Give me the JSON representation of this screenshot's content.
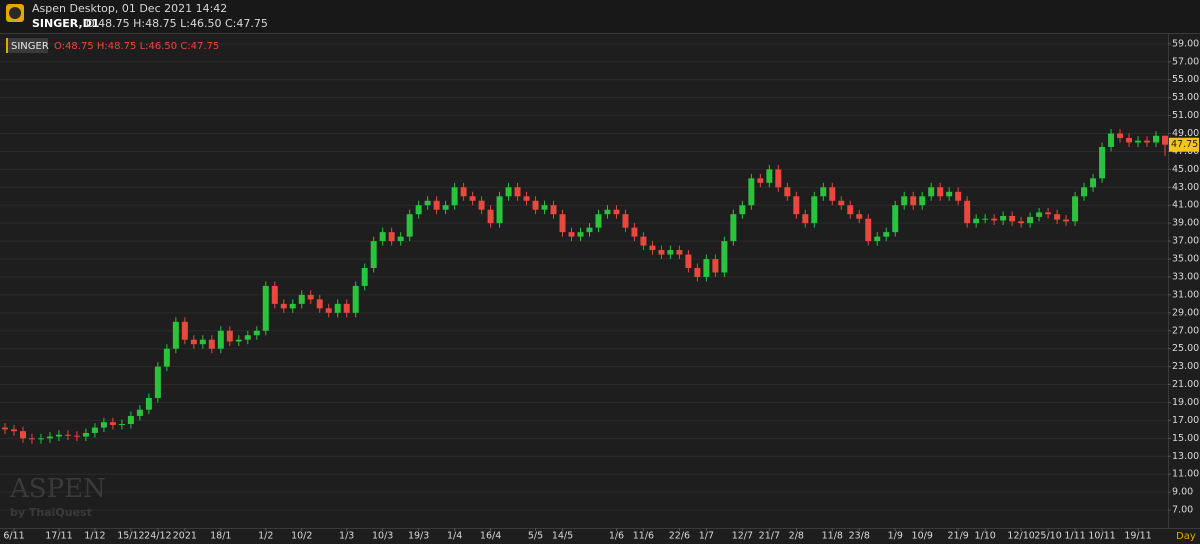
{
  "header": {
    "app_title": "Aspen Desktop, 01 Dec 2021 14:42",
    "symbol": "SINGER,D1",
    "ohlc": "O:48.75 H:48.75 L:46.50 C:47.75"
  },
  "watermark": {
    "brand": "ASPEN",
    "byline": "by ThaiQuest"
  },
  "chart_data": {
    "type": "candlestick",
    "title": "SINGER",
    "period": "Day",
    "up_color": "#2bc23e",
    "down_color": "#e8483e",
    "grid": true,
    "ylim": [
      5,
      60.1
    ],
    "yticks": [
      {
        "value": 7,
        "label": "7.00"
      },
      {
        "value": 9,
        "label": "9.00"
      },
      {
        "value": 11,
        "label": "11.00"
      },
      {
        "value": 13,
        "label": "13.00"
      },
      {
        "value": 15,
        "label": "15.00"
      },
      {
        "value": 17,
        "label": "17.00"
      },
      {
        "value": 19,
        "label": "19.00"
      },
      {
        "value": 21,
        "label": "21.00"
      },
      {
        "value": 23,
        "label": "23.00"
      },
      {
        "value": 25,
        "label": "25.00"
      },
      {
        "value": 27,
        "label": "27.00"
      },
      {
        "value": 29,
        "label": "29.00"
      },
      {
        "value": 31,
        "label": "31.00"
      },
      {
        "value": 33,
        "label": "33.00"
      },
      {
        "value": 35,
        "label": "35.00"
      },
      {
        "value": 37,
        "label": "37.00"
      },
      {
        "value": 39,
        "label": "39.00"
      },
      {
        "value": 41,
        "label": "41.00"
      },
      {
        "value": 43,
        "label": "43.00"
      },
      {
        "value": 45,
        "label": "45.00"
      },
      {
        "value": 47,
        "label": "47.00"
      },
      {
        "value": 49,
        "label": "49.00"
      },
      {
        "value": 51,
        "label": "51.00"
      },
      {
        "value": 53,
        "label": "53.00"
      },
      {
        "value": 55,
        "label": "55.00"
      },
      {
        "value": 57,
        "label": "57.00"
      },
      {
        "value": 59,
        "label": "59.00"
      }
    ],
    "current_price": {
      "value": 47.75,
      "label": "47.75"
    },
    "categories": [
      null,
      "6/11",
      null,
      null,
      null,
      null,
      "17/11",
      null,
      null,
      null,
      "1/12",
      null,
      null,
      null,
      "15/12",
      null,
      null,
      "24/12",
      null,
      null,
      "2021",
      null,
      null,
      null,
      "18/1",
      null,
      null,
      null,
      null,
      "1/2",
      null,
      null,
      null,
      "10/2",
      null,
      null,
      null,
      null,
      "1/3",
      null,
      null,
      null,
      "10/3",
      null,
      null,
      null,
      "19/3",
      null,
      null,
      null,
      "1/4",
      null,
      null,
      null,
      "16/4",
      null,
      null,
      null,
      null,
      "5/5",
      null,
      null,
      "14/5",
      null,
      null,
      null,
      null,
      null,
      "1/6",
      null,
      null,
      "11/6",
      null,
      null,
      null,
      "22/6",
      null,
      null,
      "1/7",
      null,
      null,
      null,
      "12/7",
      null,
      null,
      "21/7",
      null,
      null,
      "2/8",
      null,
      null,
      null,
      "11/8",
      null,
      null,
      "23/8",
      null,
      null,
      null,
      "1/9",
      null,
      null,
      "10/9",
      null,
      null,
      null,
      "21/9",
      null,
      null,
      "1/10",
      null,
      null,
      null,
      "12/10",
      null,
      null,
      "25/10",
      null,
      null,
      "1/11",
      null,
      null,
      "10/11",
      null,
      null,
      null,
      "19/11",
      null,
      null,
      null
    ],
    "open": [
      16.2,
      16,
      15.8,
      15,
      14.9,
      15,
      15.2,
      15.4,
      15.3,
      15.2,
      15.6,
      16.2,
      16.8,
      16.5,
      16.6,
      17.5,
      18.2,
      19.5,
      23,
      25,
      28,
      26,
      25.5,
      26,
      25,
      27,
      25.8,
      26,
      26.5,
      27,
      32,
      30,
      29.5,
      30,
      31,
      30.5,
      29.5,
      29,
      30,
      29,
      32,
      34,
      37,
      38,
      37,
      37.5,
      40,
      41,
      41.5,
      40.5,
      41,
      43,
      42,
      41.5,
      40.5,
      39,
      42,
      43,
      42,
      41.5,
      40.5,
      41,
      40,
      38,
      37.5,
      38,
      38.5,
      40,
      40.5,
      40,
      38.5,
      37.5,
      36.5,
      36,
      35.5,
      36,
      35.5,
      34,
      33,
      35,
      33.5,
      37,
      40,
      41,
      44,
      43.5,
      45,
      43,
      42,
      40,
      39,
      42,
      43,
      41.5,
      41,
      40,
      39.5,
      37,
      37.5,
      38,
      41,
      42,
      41,
      42,
      43,
      42,
      42.5,
      41.5,
      39,
      39.5,
      39.5,
      39.3,
      39.8,
      39.2,
      39,
      39.7,
      40.2,
      40,
      39.4,
      39.2,
      42,
      43,
      44,
      47.5,
      49,
      48.5,
      48,
      48.2,
      48,
      48.75
    ],
    "high": [
      16.7,
      16.5,
      16.3,
      15.5,
      15.5,
      15.7,
      15.9,
      15.9,
      15.8,
      16.1,
      16.7,
      17.3,
      17.3,
      17.1,
      18,
      18.7,
      20,
      23.5,
      25.5,
      28.5,
      28.5,
      26.5,
      26.5,
      26.5,
      27.5,
      27.5,
      26.5,
      27,
      27.5,
      32.5,
      32.5,
      30.5,
      30.5,
      31.5,
      31.5,
      31,
      30,
      30.5,
      30.5,
      32.5,
      34.5,
      37.5,
      38.5,
      38.5,
      38,
      40.5,
      41.5,
      42,
      42,
      41.5,
      43.5,
      43.5,
      42.5,
      42,
      41,
      42.5,
      43.5,
      43.5,
      42.5,
      42,
      41.5,
      41.5,
      40.5,
      38.5,
      38.5,
      39,
      40.5,
      41,
      41,
      40.5,
      39,
      38,
      37,
      36.5,
      36.5,
      36.5,
      36,
      34.5,
      35.5,
      35.5,
      37.5,
      40.5,
      41.5,
      44.5,
      44.5,
      45.5,
      45.5,
      43.5,
      42.5,
      40.5,
      42.5,
      43.5,
      43.5,
      42,
      41.5,
      40.5,
      40,
      38,
      38.5,
      41.5,
      42.5,
      42.5,
      42.5,
      43.5,
      43.5,
      43,
      43,
      42,
      40,
      40,
      40,
      40.3,
      40.3,
      39.7,
      40.2,
      40.7,
      40.7,
      40.5,
      39.9,
      42.5,
      43.5,
      44.5,
      48,
      49.5,
      49.5,
      49,
      48.7,
      48.7,
      49.25,
      48.75
    ],
    "low": [
      15.5,
      15.3,
      14.5,
      14.4,
      14.4,
      14.5,
      14.7,
      14.8,
      14.7,
      14.7,
      15.1,
      15.7,
      16,
      16,
      16.1,
      17,
      17.7,
      19,
      22.5,
      24.5,
      25.5,
      25,
      25,
      24.5,
      24.5,
      25.3,
      25.3,
      25.5,
      26,
      26.5,
      29.5,
      29,
      29,
      29.5,
      30,
      29,
      28.5,
      28.5,
      28.5,
      28.5,
      31.5,
      33.5,
      36.5,
      36.5,
      36.5,
      37,
      39.5,
      40.5,
      40,
      40,
      40.5,
      41.5,
      41,
      40,
      38.5,
      38.5,
      41.5,
      41.5,
      41,
      40,
      40,
      39.5,
      37.5,
      37,
      37,
      37.5,
      38,
      39.5,
      39.5,
      38,
      37,
      36,
      35.5,
      35,
      35,
      35,
      33.5,
      32.5,
      32.5,
      33,
      33,
      36.5,
      39.5,
      40.5,
      43,
      43,
      42.5,
      41.5,
      39.5,
      38.5,
      38.5,
      41.5,
      41,
      40.5,
      39.5,
      39,
      36.5,
      36.5,
      37,
      37.5,
      40.5,
      40.5,
      40.5,
      41.5,
      41.5,
      41.5,
      41,
      38.5,
      38.5,
      39,
      38.8,
      38.8,
      38.7,
      38.5,
      38.5,
      39.2,
      39.5,
      38.9,
      38.7,
      38.7,
      41.5,
      42.5,
      43.5,
      47,
      48,
      47.5,
      47.5,
      47.5,
      47.5,
      46.5
    ],
    "close": [
      16,
      15.8,
      15,
      14.9,
      15,
      15.2,
      15.4,
      15.3,
      15.2,
      15.6,
      16.2,
      16.8,
      16.5,
      16.6,
      17.5,
      18.2,
      19.5,
      23,
      25,
      28,
      26,
      25.5,
      26,
      25,
      27,
      25.8,
      26,
      26.5,
      27,
      32,
      30,
      29.5,
      30,
      31,
      30.5,
      29.5,
      29,
      30,
      29,
      32,
      34,
      37,
      38,
      37,
      37.5,
      40,
      41,
      41.5,
      40.5,
      41,
      43,
      42,
      41.5,
      40.5,
      39,
      42,
      43,
      42,
      41.5,
      40.5,
      41,
      40,
      38,
      37.5,
      38,
      38.5,
      40,
      40.5,
      40,
      38.5,
      37.5,
      36.5,
      36,
      35.5,
      36,
      35.5,
      34,
      33,
      35,
      33.5,
      37,
      40,
      41,
      44,
      43.5,
      45,
      43,
      42,
      40,
      39,
      42,
      43,
      41.5,
      41,
      40,
      39.5,
      37,
      37.5,
      38,
      41,
      42,
      41,
      42,
      43,
      42,
      42.5,
      41.5,
      39,
      39.5,
      39.5,
      39.3,
      39.8,
      39.2,
      39,
      39.7,
      40.2,
      40,
      39.4,
      39.2,
      42,
      43,
      44,
      47.5,
      49,
      48.5,
      48,
      48.2,
      48,
      48.75,
      47.75
    ]
  }
}
